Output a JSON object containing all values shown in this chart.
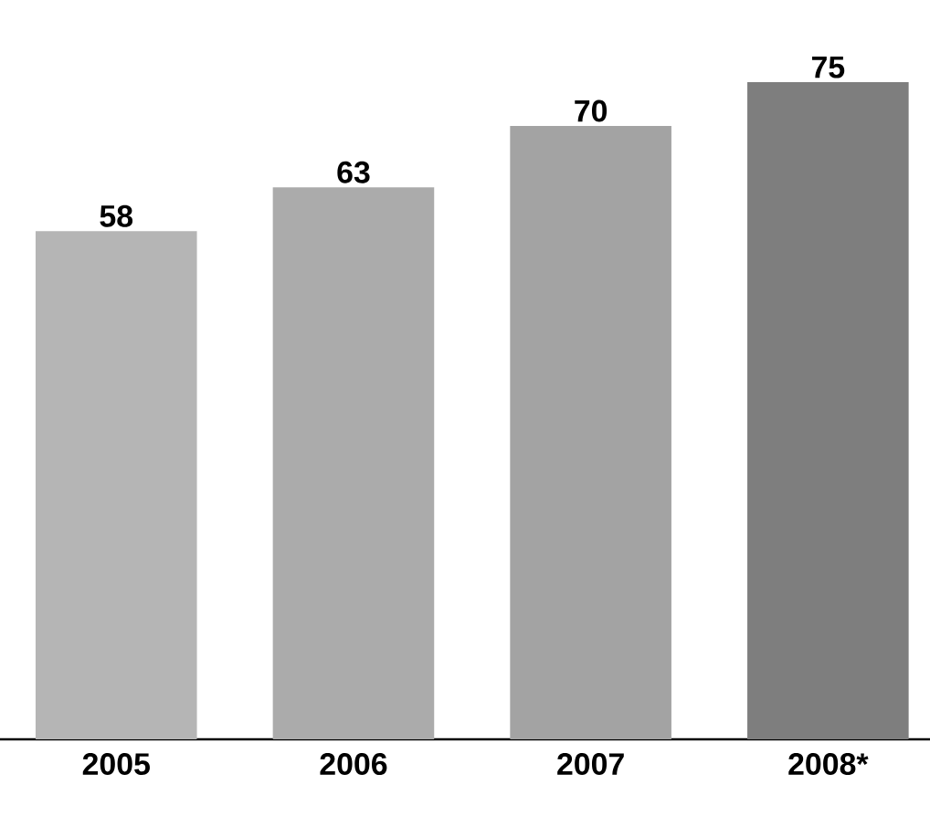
{
  "chart_data": {
    "type": "bar",
    "categories": [
      "2005",
      "2006",
      "2007",
      "2008*"
    ],
    "values": [
      58,
      63,
      70,
      75
    ],
    "colors": [
      "#b5b5b5",
      "#ababab",
      "#a3a3a3",
      "#7e7e7e"
    ],
    "data_labels": true
  }
}
